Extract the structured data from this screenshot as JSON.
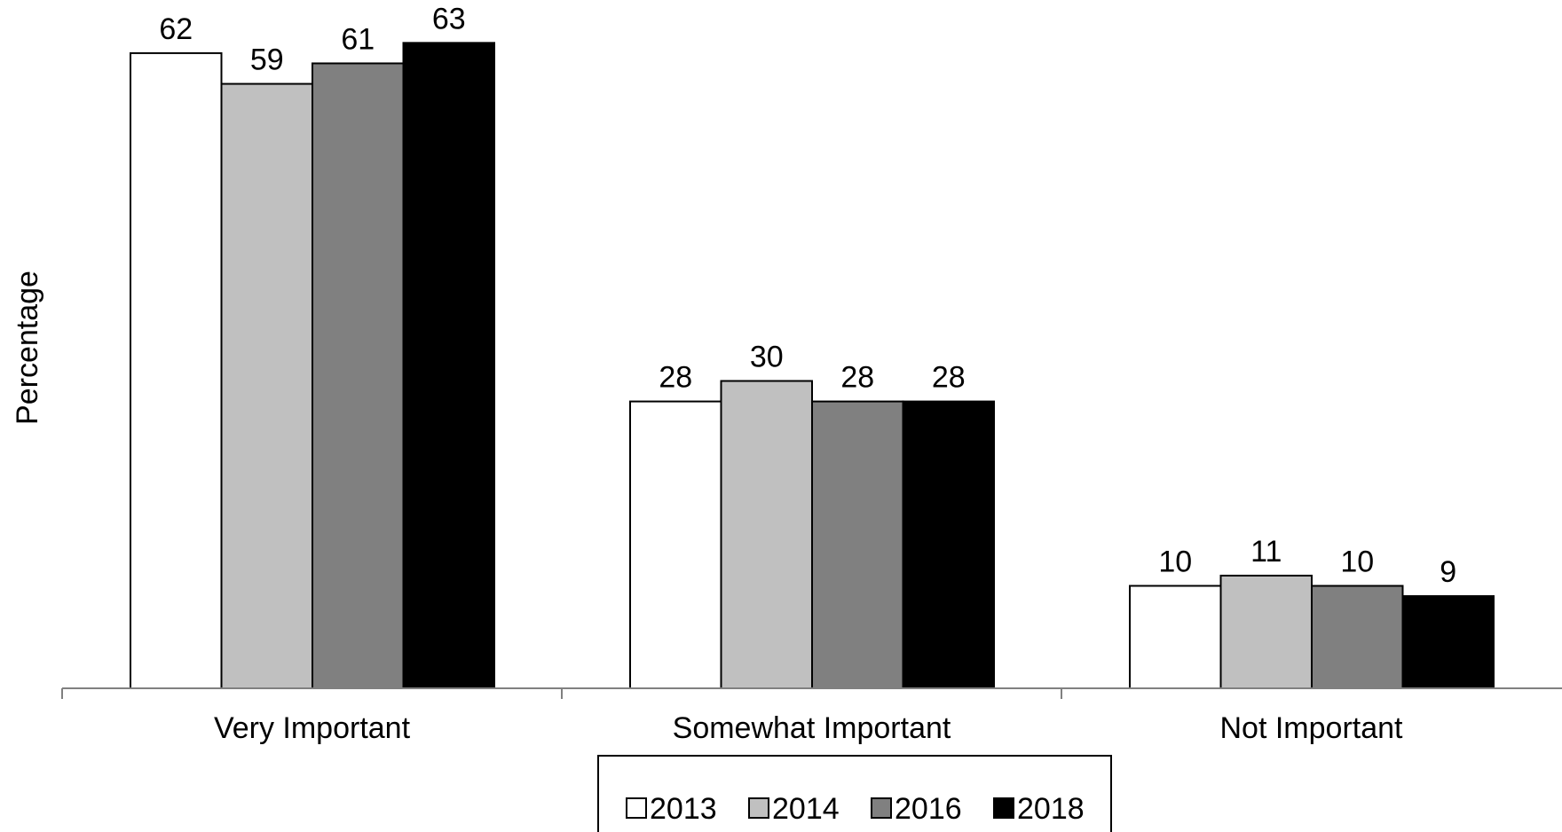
{
  "chart_data": {
    "type": "bar",
    "title": "",
    "xlabel": "",
    "ylabel": "Percentage",
    "categories": [
      "Very Important",
      "Somewhat Important",
      "Not Important"
    ],
    "series": [
      {
        "name": "2013",
        "values": [
          62,
          28,
          10
        ],
        "color": "#ffffff"
      },
      {
        "name": "2014",
        "values": [
          59,
          30,
          11
        ],
        "color": "#c0c0c0"
      },
      {
        "name": "2016",
        "values": [
          61,
          28,
          10
        ],
        "color": "#808080"
      },
      {
        "name": "2018",
        "values": [
          63,
          28,
          9
        ],
        "color": "#000000"
      }
    ],
    "ylim": [
      0,
      68
    ],
    "grid": false,
    "legend_position": "bottom-center",
    "data_labels": true
  }
}
